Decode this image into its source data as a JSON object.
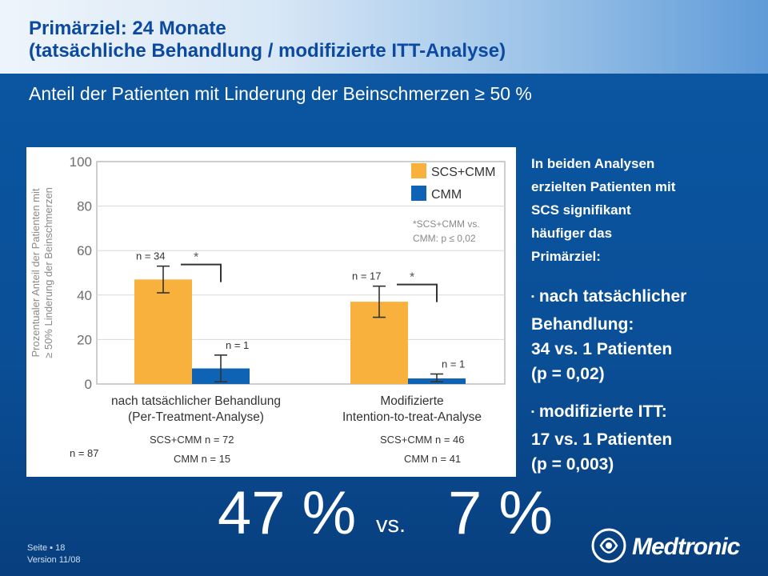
{
  "header": {
    "title_line1": "Primärziel: 24 Monate",
    "title_line2": "(tatsächliche Behandlung / modifizierte ITT-Analyse)"
  },
  "subtitle": "Anteil der Patienten mit Linderung der Beinschmerzen ≥ 50 %",
  "chart_data": {
    "type": "bar",
    "ylabel": "Prozentualer Anteil der Patienten mit ≥ 50% Linderung der Beinschmerzen",
    "ylim": [
      0,
      100
    ],
    "yticks": [
      "100",
      "80",
      "60",
      "40",
      "20",
      "0"
    ],
    "categories": [
      {
        "line1": "nach tatsächlicher Behandlung",
        "line2": "(Per-Treatment-Analyse)"
      },
      {
        "line1": "Modifizierte",
        "line2": "Intention-to-treat-Analyse"
      }
    ],
    "series": [
      {
        "name": "SCS+CMM",
        "color": "#f9b13e",
        "values": [
          47,
          37
        ],
        "errors": [
          [
            41,
            53
          ],
          [
            30,
            44
          ]
        ],
        "n_labels": [
          "n = 34",
          "n = 17"
        ]
      },
      {
        "name": "CMM",
        "color": "#0f63b4",
        "values": [
          7,
          2.5
        ],
        "errors": [
          [
            1,
            13
          ],
          [
            1,
            4.5
          ]
        ],
        "n_labels": [
          "n = 1",
          "n = 1"
        ]
      }
    ],
    "significance_mark": "*",
    "legend_note_line1": "*SCS+CMM vs.",
    "legend_note_line2": "CMM: p ≤ 0,02",
    "legend_position": "top-right",
    "totals": {
      "overall": "n = 87",
      "groups": [
        {
          "scs": "SCS+CMM n = 72",
          "cmm": "CMM n = 15"
        },
        {
          "scs": "SCS+CMM n = 46",
          "cmm": "CMM n = 41"
        }
      ]
    }
  },
  "side": {
    "intro": [
      "In beiden Analysen",
      "erzielten Patienten mit",
      "SCS signifikant",
      "häufiger das",
      "Primärziel:"
    ],
    "bullet1": [
      "nach tatsächlicher",
      "Behandlung:",
      "34 vs. 1 Patienten",
      "(p = 0,02)"
    ],
    "bullet2": [
      "modifizierte ITT:",
      "17 vs. 1 Patienten",
      "(p = 0,003)"
    ],
    "bullet_marker": "▪"
  },
  "highlight": {
    "left": "47 %",
    "vs": "vs.",
    "right": "7 %"
  },
  "footer": {
    "page": "Seite ▪ 18",
    "version": "Version 11/08"
  },
  "logo": {
    "text": "Medtronic",
    "icon": "medtronic-logo-icon"
  }
}
